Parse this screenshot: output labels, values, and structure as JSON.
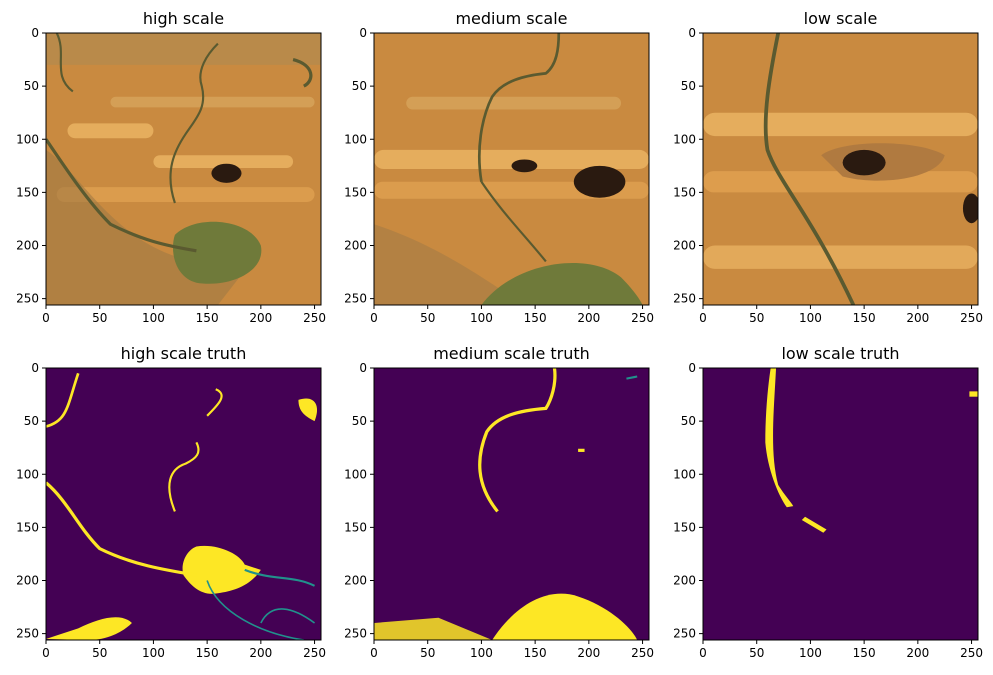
{
  "colors": {
    "mask_background": "#440154",
    "mask_foreground": "#fde725",
    "mask_edge": "#21918c",
    "sand_light": "#e8b060",
    "sand_mid": "#c98a40",
    "sand_dark": "#8a6a3a",
    "river": "#5a5a30",
    "water": "#6f7a3a",
    "pool": "#2a1a10",
    "axis": "#000000"
  },
  "axes": {
    "x_ticks": [
      "0",
      "50",
      "100",
      "150",
      "200",
      "250"
    ],
    "y_ticks": [
      "0",
      "50",
      "100",
      "150",
      "200",
      "250"
    ],
    "x_tick_values": [
      0,
      50,
      100,
      150,
      200,
      250
    ],
    "y_tick_values": [
      0,
      50,
      100,
      150,
      200,
      250
    ],
    "xlim": [
      0,
      256
    ],
    "ylim": [
      256,
      0
    ]
  },
  "panels": [
    {
      "title": "high scale",
      "kind": "satellite",
      "scene": "high"
    },
    {
      "title": "medium scale",
      "kind": "satellite",
      "scene": "medium"
    },
    {
      "title": "low scale",
      "kind": "satellite",
      "scene": "low"
    },
    {
      "title": "high scale truth",
      "kind": "mask",
      "scene": "high"
    },
    {
      "title": "medium scale truth",
      "kind": "mask",
      "scene": "medium"
    },
    {
      "title": "low scale truth",
      "kind": "mask",
      "scene": "low"
    }
  ]
}
